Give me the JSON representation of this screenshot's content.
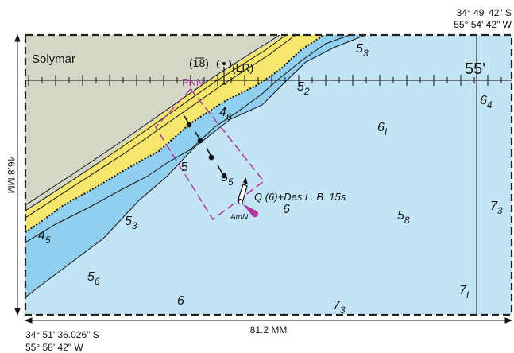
{
  "place_name": "Solymar",
  "coords": {
    "top_right_lat": "34° 49' 42\" S",
    "top_right_lon": "55° 54' 42\" W",
    "bottom_left_lat": "34° 51' 36.026\" S",
    "bottom_left_lon": "55° 58' 42\" W"
  },
  "dimensions": {
    "width": "81.2 MM",
    "height": "46.8 MM"
  },
  "grid_label": "55'",
  "labels": {
    "pnn": "PNN",
    "light_char": "Q (6)+Des L. B. 15s",
    "amn": "AmN",
    "lr": "(LR)",
    "pos18": "(18)",
    "contour5": "5"
  },
  "soundings": [
    {
      "int": "5",
      "sub": "3"
    },
    {
      "int": "5",
      "sub": "2"
    },
    {
      "int": "4",
      "sub": "6"
    },
    {
      "int": "6",
      "sub": "4"
    },
    {
      "int": "6",
      "sub": "I"
    },
    {
      "int": "5",
      "sub": "5"
    },
    {
      "int": "6",
      "sub": ""
    },
    {
      "int": "5",
      "sub": "8"
    },
    {
      "int": "7",
      "sub": "3"
    },
    {
      "int": "5",
      "sub": "3"
    },
    {
      "int": "4",
      "sub": "5"
    },
    {
      "int": "5",
      "sub": "6"
    },
    {
      "int": "6",
      "sub": ""
    },
    {
      "int": "7",
      "sub": "3"
    },
    {
      "int": "7",
      "sub": "I"
    }
  ],
  "colors": {
    "land": "#d6d6c6",
    "beach": "#f5e66e",
    "shallow": "#91cfee",
    "deep": "#c3e4f5",
    "magenta": "#b0379a",
    "frame": "#222222"
  }
}
